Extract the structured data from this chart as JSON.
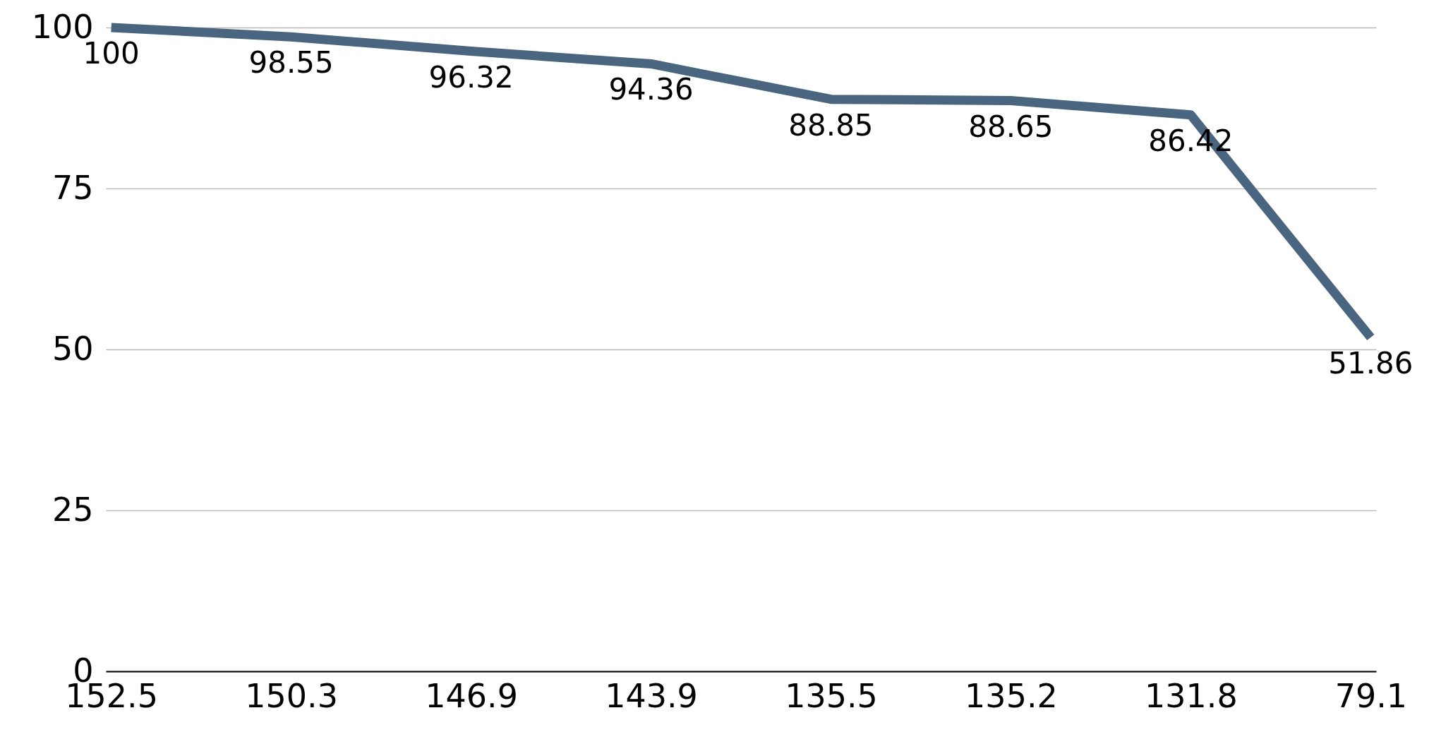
{
  "chart_data": {
    "type": "line",
    "categories": [
      "152.5",
      "150.3",
      "146.9",
      "143.9",
      "135.5",
      "135.2",
      "131.8",
      "79.1"
    ],
    "series": [
      {
        "color": "#4a6580",
        "values": [
          100,
          98.55,
          96.32,
          94.36,
          88.85,
          88.65,
          86.42,
          51.86
        ]
      }
    ],
    "ylim": [
      0,
      100
    ],
    "yticks": [
      0,
      25,
      50,
      75,
      100
    ],
    "grid": "y",
    "data_labels": true,
    "line_style": "solid"
  }
}
